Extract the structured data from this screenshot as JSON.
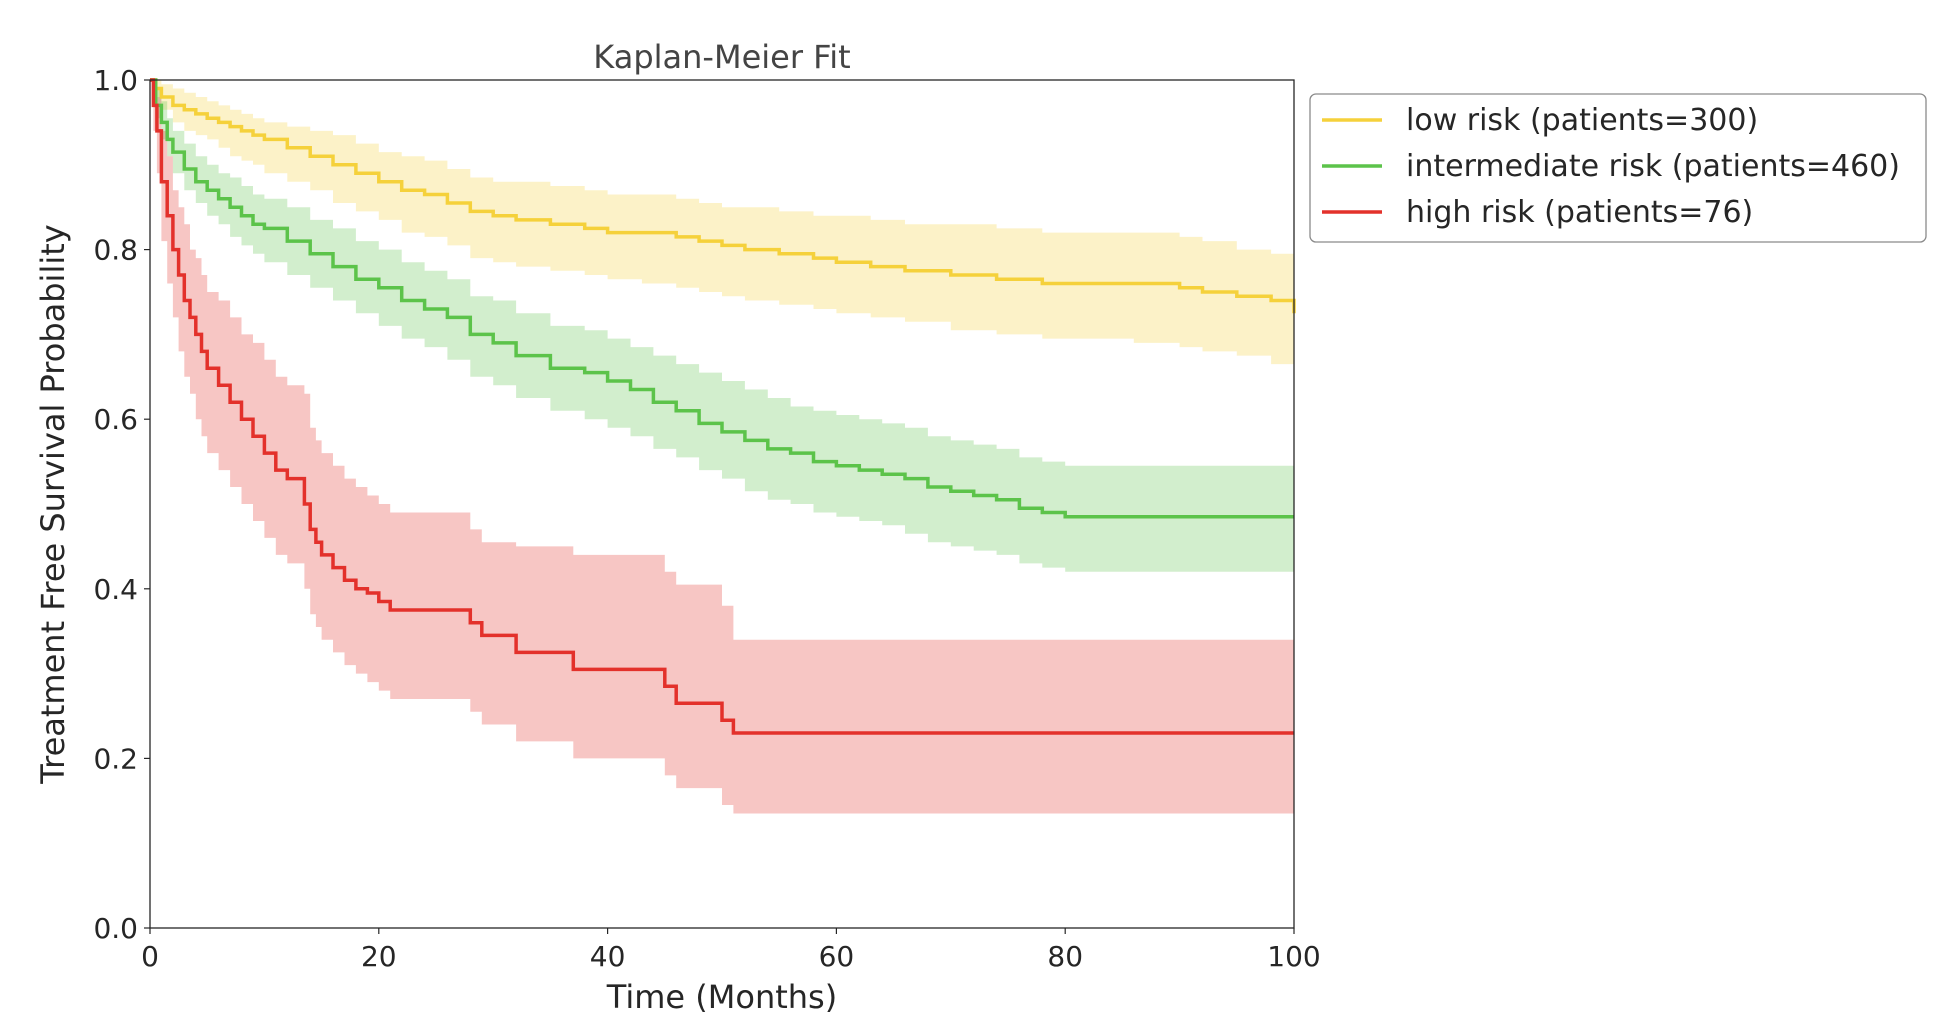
{
  "chart_data": {
    "type": "line",
    "subtype": "kaplan-meier step curves with confidence bands",
    "title": "Kaplan-Meier Fit",
    "xlabel": "Time (Months)",
    "ylabel": "Treatment Free Survival Probability",
    "xlim": [
      0,
      100
    ],
    "ylim": [
      0,
      1.0
    ],
    "xticks": [
      0,
      20,
      40,
      60,
      80,
      100
    ],
    "yticks": [
      0.0,
      0.2,
      0.4,
      0.6,
      0.8,
      1.0
    ],
    "xtick_labels": [
      "0",
      "20",
      "40",
      "60",
      "80",
      "100"
    ],
    "ytick_labels": [
      "0.0",
      "0.2",
      "0.4",
      "0.6",
      "0.8",
      "1.0"
    ],
    "grid": false,
    "legend_position": "outside-top-right",
    "series": [
      {
        "name": "low risk (patients=300)",
        "color": "#f5d13b",
        "x": [
          0,
          0.5,
          1,
          2,
          3,
          4,
          5,
          6,
          7,
          8,
          9,
          10,
          12,
          14,
          16,
          18,
          20,
          22,
          24,
          26,
          28,
          30,
          32,
          35,
          38,
          40,
          43,
          46,
          48,
          50,
          52,
          55,
          58,
          60,
          63,
          66,
          70,
          74,
          78,
          82,
          86,
          90,
          92,
          95,
          98,
          100
        ],
        "y": [
          1.0,
          0.99,
          0.98,
          0.97,
          0.965,
          0.96,
          0.955,
          0.95,
          0.945,
          0.94,
          0.935,
          0.93,
          0.92,
          0.91,
          0.9,
          0.89,
          0.88,
          0.87,
          0.865,
          0.855,
          0.845,
          0.84,
          0.835,
          0.83,
          0.825,
          0.82,
          0.82,
          0.815,
          0.81,
          0.805,
          0.8,
          0.795,
          0.79,
          0.785,
          0.78,
          0.775,
          0.77,
          0.765,
          0.76,
          0.76,
          0.76,
          0.755,
          0.75,
          0.745,
          0.74,
          0.725
        ],
        "ci_lower": [
          1.0,
          0.98,
          0.965,
          0.95,
          0.94,
          0.935,
          0.93,
          0.92,
          0.91,
          0.905,
          0.9,
          0.89,
          0.88,
          0.87,
          0.855,
          0.845,
          0.835,
          0.82,
          0.815,
          0.805,
          0.79,
          0.785,
          0.78,
          0.775,
          0.77,
          0.765,
          0.76,
          0.755,
          0.75,
          0.745,
          0.74,
          0.735,
          0.73,
          0.725,
          0.72,
          0.715,
          0.705,
          0.7,
          0.695,
          0.695,
          0.69,
          0.685,
          0.68,
          0.675,
          0.665,
          0.655
        ],
        "ci_upper": [
          1.0,
          1.0,
          0.995,
          0.99,
          0.985,
          0.98,
          0.975,
          0.97,
          0.965,
          0.96,
          0.955,
          0.95,
          0.945,
          0.94,
          0.935,
          0.925,
          0.915,
          0.91,
          0.905,
          0.895,
          0.885,
          0.88,
          0.88,
          0.875,
          0.87,
          0.865,
          0.865,
          0.86,
          0.855,
          0.85,
          0.85,
          0.845,
          0.84,
          0.84,
          0.835,
          0.83,
          0.83,
          0.825,
          0.82,
          0.82,
          0.82,
          0.815,
          0.81,
          0.8,
          0.795,
          0.785
        ]
      },
      {
        "name": "intermediate risk (patients=460)",
        "color": "#5cc34a",
        "x": [
          0,
          0.5,
          1,
          1.5,
          2,
          3,
          4,
          5,
          6,
          7,
          8,
          9,
          10,
          12,
          14,
          16,
          18,
          20,
          22,
          24,
          26,
          28,
          30,
          32,
          35,
          38,
          40,
          42,
          44,
          46,
          48,
          50,
          52,
          54,
          56,
          58,
          60,
          62,
          64,
          66,
          68,
          70,
          72,
          74,
          76,
          78,
          80,
          85,
          90,
          95,
          100
        ],
        "y": [
          1.0,
          0.97,
          0.95,
          0.93,
          0.915,
          0.895,
          0.88,
          0.87,
          0.86,
          0.85,
          0.84,
          0.83,
          0.825,
          0.81,
          0.795,
          0.78,
          0.765,
          0.755,
          0.74,
          0.73,
          0.72,
          0.7,
          0.69,
          0.675,
          0.66,
          0.655,
          0.645,
          0.635,
          0.62,
          0.61,
          0.595,
          0.585,
          0.575,
          0.565,
          0.56,
          0.55,
          0.545,
          0.54,
          0.535,
          0.53,
          0.52,
          0.515,
          0.51,
          0.505,
          0.495,
          0.49,
          0.485,
          0.485,
          0.485,
          0.485,
          0.485
        ],
        "ci_lower": [
          1.0,
          0.955,
          0.93,
          0.91,
          0.89,
          0.87,
          0.855,
          0.84,
          0.83,
          0.815,
          0.805,
          0.795,
          0.785,
          0.77,
          0.755,
          0.74,
          0.725,
          0.71,
          0.695,
          0.685,
          0.67,
          0.65,
          0.64,
          0.625,
          0.61,
          0.6,
          0.59,
          0.58,
          0.565,
          0.555,
          0.54,
          0.53,
          0.515,
          0.505,
          0.5,
          0.49,
          0.485,
          0.48,
          0.475,
          0.465,
          0.455,
          0.45,
          0.445,
          0.44,
          0.43,
          0.425,
          0.42,
          0.42,
          0.42,
          0.42,
          0.42
        ],
        "ci_upper": [
          1.0,
          0.99,
          0.975,
          0.955,
          0.94,
          0.925,
          0.91,
          0.9,
          0.89,
          0.885,
          0.875,
          0.865,
          0.86,
          0.85,
          0.835,
          0.825,
          0.81,
          0.8,
          0.785,
          0.775,
          0.765,
          0.745,
          0.74,
          0.725,
          0.71,
          0.705,
          0.695,
          0.685,
          0.675,
          0.665,
          0.655,
          0.645,
          0.635,
          0.625,
          0.615,
          0.61,
          0.605,
          0.6,
          0.595,
          0.59,
          0.58,
          0.575,
          0.57,
          0.565,
          0.555,
          0.55,
          0.545,
          0.545,
          0.545,
          0.545,
          0.545
        ]
      },
      {
        "name": "high risk (patients=76)",
        "color": "#e3312b",
        "x": [
          0,
          0.3,
          0.6,
          1,
          1.5,
          2,
          2.5,
          3,
          3.5,
          4,
          4.5,
          5,
          6,
          7,
          8,
          9,
          10,
          11,
          12,
          13.5,
          14,
          14.5,
          15,
          16,
          17,
          18,
          19,
          20,
          21,
          28,
          29,
          32,
          37,
          45,
          46,
          50,
          51,
          100
        ],
        "y": [
          1.0,
          0.97,
          0.94,
          0.88,
          0.84,
          0.8,
          0.77,
          0.74,
          0.72,
          0.7,
          0.68,
          0.66,
          0.64,
          0.62,
          0.6,
          0.58,
          0.56,
          0.54,
          0.53,
          0.5,
          0.47,
          0.455,
          0.44,
          0.425,
          0.41,
          0.4,
          0.395,
          0.385,
          0.375,
          0.36,
          0.345,
          0.325,
          0.305,
          0.285,
          0.265,
          0.245,
          0.23,
          0.23
        ],
        "ci_lower": [
          1.0,
          0.94,
          0.89,
          0.81,
          0.76,
          0.72,
          0.68,
          0.65,
          0.63,
          0.6,
          0.58,
          0.56,
          0.54,
          0.52,
          0.5,
          0.48,
          0.46,
          0.44,
          0.43,
          0.4,
          0.37,
          0.355,
          0.34,
          0.325,
          0.31,
          0.3,
          0.29,
          0.28,
          0.27,
          0.255,
          0.24,
          0.22,
          0.2,
          0.18,
          0.165,
          0.145,
          0.135,
          0.135
        ],
        "ci_upper": [
          1.0,
          1.0,
          0.98,
          0.94,
          0.91,
          0.87,
          0.85,
          0.83,
          0.8,
          0.79,
          0.77,
          0.75,
          0.74,
          0.72,
          0.7,
          0.69,
          0.67,
          0.65,
          0.64,
          0.63,
          0.59,
          0.575,
          0.56,
          0.545,
          0.53,
          0.52,
          0.51,
          0.5,
          0.49,
          0.47,
          0.455,
          0.45,
          0.44,
          0.42,
          0.405,
          0.38,
          0.34,
          0.34
        ]
      }
    ]
  }
}
